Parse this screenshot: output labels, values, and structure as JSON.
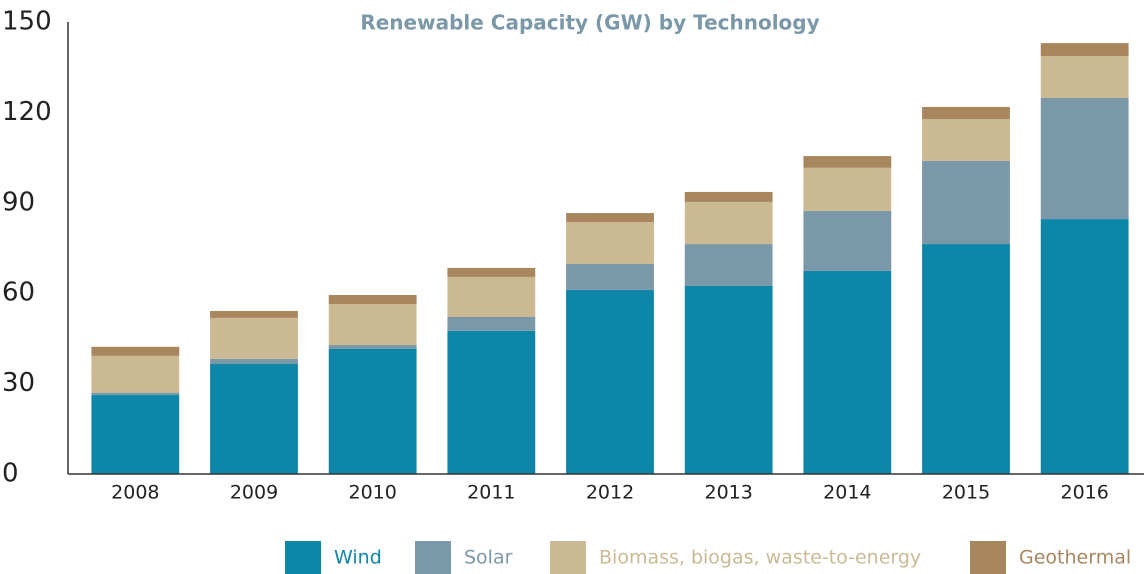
{
  "chart_data": {
    "type": "stacked-bar",
    "title": "Renewable Capacity (GW) by Technology",
    "categories": [
      "2008",
      "2009",
      "2010",
      "2011",
      "2012",
      "2013",
      "2014",
      "2015",
      "2016"
    ],
    "series": [
      {
        "name": "Wind",
        "color": "#0e86a8",
        "values": [
          26.2,
          36.5,
          41.5,
          47.5,
          61.1,
          62.4,
          67.4,
          76.3,
          84.6
        ]
      },
      {
        "name": "Solar",
        "color": "#7a98a8",
        "values": [
          0.8,
          1.7,
          1.3,
          4.6,
          8.6,
          13.9,
          19.9,
          27.6,
          40.2
        ]
      },
      {
        "name": "Biomass, biogas, waste-to-energy",
        "color": "#cbb994",
        "values": [
          12.2,
          13.6,
          13.6,
          13.3,
          13.9,
          14.0,
          14.3,
          13.9,
          13.9
        ]
      },
      {
        "name": "Geothermal",
        "color": "#a8865e",
        "values": [
          3.0,
          2.3,
          3.0,
          3.0,
          3.0,
          3.3,
          3.9,
          4.0,
          4.3
        ]
      }
    ],
    "ylim": [
      0,
      150
    ],
    "yticks": [
      0,
      30,
      60,
      90,
      120,
      150
    ],
    "grid": false
  }
}
